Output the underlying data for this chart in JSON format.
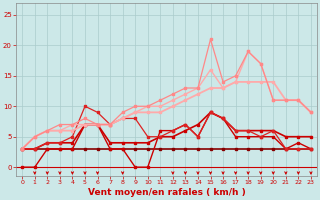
{
  "bg_color": "#cce8e8",
  "grid_color": "#aacccc",
  "xlabel": "Vent moyen/en rafales ( km/h )",
  "xlabel_color": "#cc0000",
  "yticks": [
    0,
    5,
    10,
    15,
    20,
    25
  ],
  "xticks": [
    0,
    1,
    2,
    3,
    4,
    5,
    6,
    7,
    8,
    9,
    10,
    11,
    12,
    13,
    14,
    15,
    16,
    17,
    18,
    19,
    20,
    21,
    22,
    23
  ],
  "xlim": [
    -0.5,
    23.5
  ],
  "ylim": [
    -1.5,
    27
  ],
  "series": [
    {
      "x": [
        0,
        1,
        2,
        3,
        4,
        5,
        6,
        7,
        8,
        9,
        10,
        11,
        12,
        13,
        14,
        15,
        16,
        17,
        18,
        19,
        20,
        21,
        22,
        23
      ],
      "y": [
        3,
        3,
        3,
        3,
        3,
        3,
        3,
        3,
        3,
        3,
        3,
        3,
        3,
        3,
        3,
        3,
        3,
        3,
        3,
        3,
        3,
        3,
        3,
        3
      ],
      "color": "#880000",
      "lw": 1.2,
      "marker": "s",
      "ms": 1.5
    },
    {
      "x": [
        0,
        1,
        2,
        3,
        4,
        5,
        6,
        7,
        8,
        9,
        10,
        11,
        12,
        13,
        14,
        15,
        16,
        17,
        18,
        19,
        20,
        21,
        22,
        23
      ],
      "y": [
        0,
        0,
        3,
        3,
        3,
        7,
        7,
        3,
        3,
        0,
        0,
        6,
        6,
        7,
        5,
        9,
        8,
        5,
        5,
        5,
        5,
        3,
        4,
        3
      ],
      "color": "#cc0000",
      "lw": 1.0,
      "marker": "s",
      "ms": 1.5
    },
    {
      "x": [
        0,
        1,
        2,
        3,
        4,
        5,
        6,
        7,
        8,
        9,
        10,
        11,
        12,
        13,
        14,
        15,
        16,
        17,
        18,
        19,
        20,
        21,
        22,
        23
      ],
      "y": [
        3,
        3,
        4,
        4,
        4,
        7,
        7,
        4,
        4,
        4,
        4,
        5,
        5,
        6,
        7,
        9,
        8,
        6,
        6,
        6,
        6,
        5,
        5,
        5
      ],
      "color": "#cc0000",
      "lw": 1.2,
      "marker": "s",
      "ms": 1.5
    },
    {
      "x": [
        0,
        1,
        2,
        3,
        4,
        5,
        6,
        7,
        8,
        9,
        10,
        11,
        12,
        13,
        14,
        15,
        16,
        17,
        18,
        19,
        20,
        21,
        22,
        23
      ],
      "y": [
        3,
        3,
        4,
        4,
        5,
        10,
        9,
        7,
        8,
        8,
        5,
        5,
        6,
        7,
        5,
        9,
        8,
        6,
        6,
        5,
        6,
        3,
        3,
        3
      ],
      "color": "#dd2222",
      "lw": 0.9,
      "marker": "s",
      "ms": 1.5
    },
    {
      "x": [
        0,
        1,
        2,
        3,
        4,
        5,
        6,
        7,
        8,
        9,
        10,
        11,
        12,
        13,
        14,
        15,
        16,
        17,
        18,
        19,
        20,
        21,
        22,
        23
      ],
      "y": [
        3,
        5,
        6,
        6,
        6,
        7,
        7,
        7,
        8,
        9,
        9,
        9,
        10,
        11,
        12,
        13,
        13,
        14,
        14,
        14,
        14,
        11,
        11,
        9
      ],
      "color": "#ffaaaa",
      "lw": 1.3,
      "marker": "s",
      "ms": 1.5
    },
    {
      "x": [
        0,
        1,
        2,
        3,
        4,
        5,
        6,
        7,
        8,
        9,
        10,
        11,
        12,
        13,
        14,
        15,
        16,
        17,
        18,
        19,
        20,
        21,
        22,
        23
      ],
      "y": [
        3,
        5,
        6,
        6,
        7,
        7,
        7,
        7,
        8,
        9,
        10,
        10,
        11,
        12,
        13,
        16,
        13,
        14,
        19,
        17,
        11,
        11,
        11,
        9
      ],
      "color": "#ffaaaa",
      "lw": 1.0,
      "marker": "s",
      "ms": 1.5
    },
    {
      "x": [
        0,
        1,
        2,
        3,
        4,
        5,
        6,
        7,
        8,
        9,
        10,
        11,
        12,
        13,
        14,
        15,
        16,
        17,
        18,
        19,
        20,
        21,
        22,
        23
      ],
      "y": [
        3,
        5,
        6,
        7,
        7,
        8,
        7,
        7,
        9,
        10,
        10,
        11,
        12,
        13,
        13,
        21,
        14,
        15,
        19,
        17,
        11,
        11,
        11,
        9
      ],
      "color": "#ff8888",
      "lw": 0.9,
      "marker": "s",
      "ms": 1.5
    }
  ],
  "arrows_x": [
    1,
    2,
    3,
    4,
    5,
    6,
    8,
    12,
    13,
    14,
    15,
    16,
    17,
    18,
    19,
    20,
    21,
    22,
    23
  ],
  "tick_label_color": "#cc0000",
  "axis_label_fontsize": 6.5
}
